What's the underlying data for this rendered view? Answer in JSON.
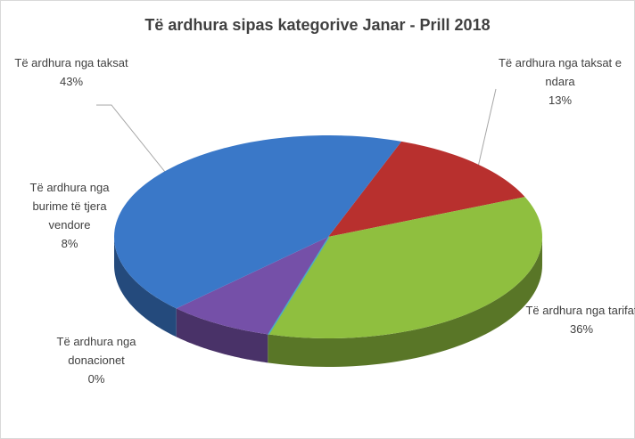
{
  "chart_data": {
    "type": "pie",
    "title": "Të ardhura sipas kategorive Janar - Prill 2018",
    "categories": [
      "Të ardhura nga taksat e ndara",
      "Të ardhura nga tarifat",
      "Të ardhura nga donacionet",
      "Të ardhura nga burime të tjera vendore",
      "Të ardhura nga taksat"
    ],
    "values": [
      13,
      36,
      0,
      8,
      43
    ],
    "value_labels": [
      "13%",
      "36%",
      "0%",
      "8%",
      "43%"
    ],
    "colors": [
      "#b8302e",
      "#8fbf3f",
      "#4bacc6",
      "#7550a8",
      "#3a78c8"
    ]
  }
}
